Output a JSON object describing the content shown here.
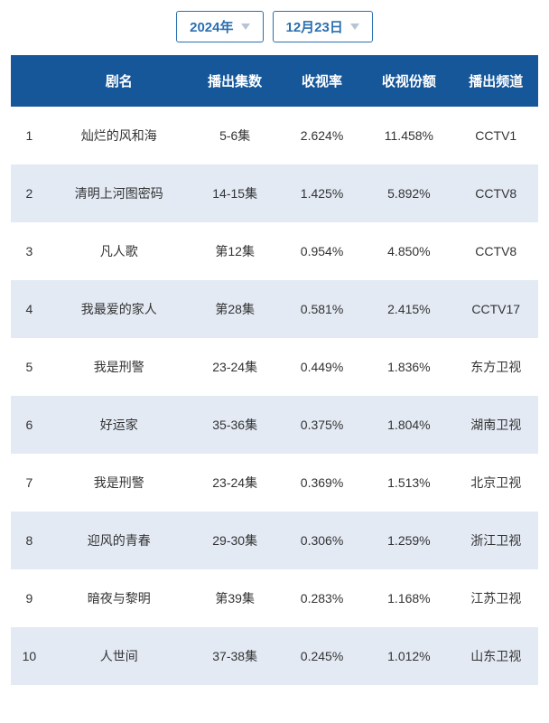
{
  "selectors": {
    "year": "2024年",
    "date": "12月23日"
  },
  "table": {
    "columns": [
      "",
      "剧名",
      "播出集数",
      "收视率",
      "收视份额",
      "播出频道"
    ],
    "header_bg": "#16579a",
    "header_fg": "#ffffff",
    "row_odd_bg": "#ffffff",
    "row_even_bg": "#e3eaf4",
    "text_color": "#333333",
    "font_size_header": 15,
    "font_size_cell": 14,
    "rows": [
      [
        "1",
        "灿烂的风和海",
        "5-6集",
        "2.624%",
        "11.458%",
        "CCTV1"
      ],
      [
        "2",
        "清明上河图密码",
        "14-15集",
        "1.425%",
        "5.892%",
        "CCTV8"
      ],
      [
        "3",
        "凡人歌",
        "第12集",
        "0.954%",
        "4.850%",
        "CCTV8"
      ],
      [
        "4",
        "我最爱的家人",
        "第28集",
        "0.581%",
        "2.415%",
        "CCTV17"
      ],
      [
        "5",
        "我是刑警",
        "23-24集",
        "0.449%",
        "1.836%",
        "东方卫视"
      ],
      [
        "6",
        "好运家",
        "35-36集",
        "0.375%",
        "1.804%",
        "湖南卫视"
      ],
      [
        "7",
        "我是刑警",
        "23-24集",
        "0.369%",
        "1.513%",
        "北京卫视"
      ],
      [
        "8",
        "迎风的青春",
        "29-30集",
        "0.306%",
        "1.259%",
        "浙江卫视"
      ],
      [
        "9",
        "暗夜与黎明",
        "第39集",
        "0.283%",
        "1.168%",
        "江苏卫视"
      ],
      [
        "10",
        "人世间",
        "37-38集",
        "0.245%",
        "1.012%",
        "山东卫视"
      ]
    ]
  },
  "selector_style": {
    "border_color": "#2a6fb0",
    "text_color": "#2a6fb0",
    "triangle_color": "#b8c4d6"
  }
}
